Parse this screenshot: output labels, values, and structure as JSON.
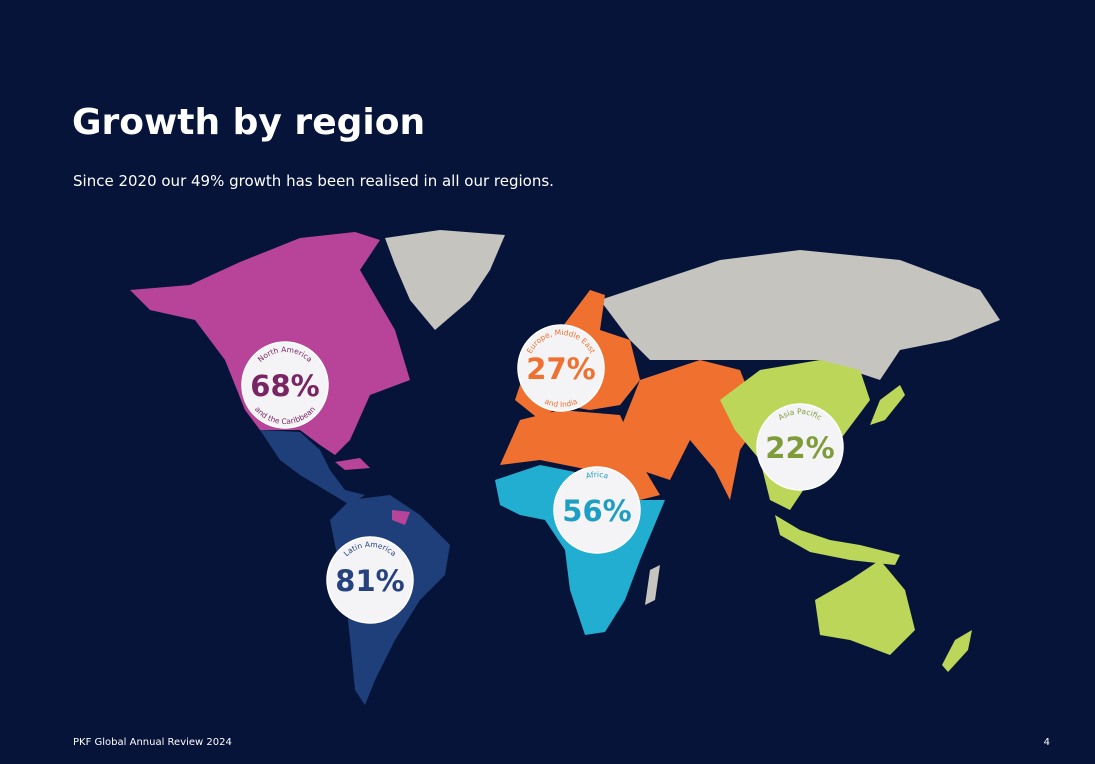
{
  "header": {
    "title": "Growth by region",
    "subtitle": "Since 2020 our 49% growth has been realised in all our regions."
  },
  "regions": [
    {
      "label_top": "North America",
      "label_bottom": "and the Caribbean",
      "value": "68%",
      "color": "#7a2563"
    },
    {
      "label_top": "Europe, Middle East",
      "label_bottom": "and India",
      "value": "27%",
      "color": "#f0712f"
    },
    {
      "label_top": "Africa",
      "value": "56%",
      "color": "#1d9ec2"
    },
    {
      "label_top": "Asia Pacific",
      "value": "22%",
      "color": "#7f9c3a"
    },
    {
      "label_top": "Latin America",
      "value": "81%",
      "color": "#25427e"
    }
  ],
  "footer": {
    "publication": "PKF Global Annual Review 2024",
    "page": "4"
  }
}
